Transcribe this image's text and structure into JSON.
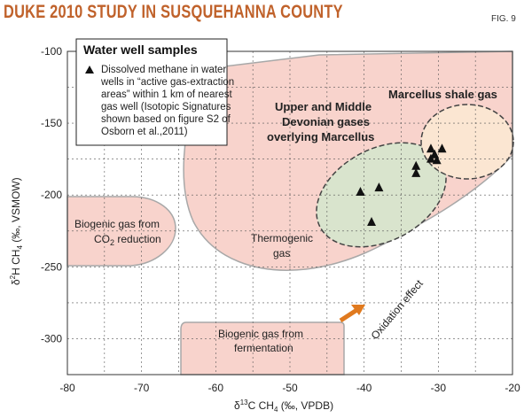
{
  "header": {
    "title": "DUKE 2010 STUDY IN SUSQUEHANNA COUNTY",
    "fig_number": "FIG. 9"
  },
  "colors": {
    "title": "#c0622b",
    "region_fill": "#f8d3cc",
    "region_stroke": "#a8a8a8",
    "devonian_fill": "#d9e4cd",
    "marcellus_fill": "#fbe6d2",
    "arrow": "#e07a1f"
  },
  "chart_data": {
    "type": "scatter",
    "xlabel": "δ13C CH4 (‰, VPDB)",
    "ylabel": "δ2H CH4 (‰, VSMOW)",
    "xlim": [
      -80,
      -20
    ],
    "ylim": [
      -325,
      -100
    ],
    "x_ticks": [
      -80,
      -70,
      -60,
      -50,
      -40,
      -30,
      -20
    ],
    "y_ticks": [
      -100,
      -150,
      -200,
      -250,
      -300
    ],
    "x_tick_labels": [
      "-80",
      "-70",
      "-60",
      "-50",
      "-40",
      "-30",
      "-20"
    ],
    "y_tick_labels": [
      "-100",
      "-150",
      "-200",
      "-250",
      "-300"
    ],
    "grid": true,
    "series": [
      {
        "name": "Dissolved methane in water wells",
        "marker": "triangle",
        "points": [
          {
            "x": -40.5,
            "y": -198
          },
          {
            "x": -39,
            "y": -219
          },
          {
            "x": -38,
            "y": -195
          },
          {
            "x": -33,
            "y": -180
          },
          {
            "x": -33,
            "y": -185
          },
          {
            "x": -31,
            "y": -168
          },
          {
            "x": -31,
            "y": -175
          },
          {
            "x": -30.5,
            "y": -172
          },
          {
            "x": -30.2,
            "y": -176
          },
          {
            "x": -29.5,
            "y": -168
          }
        ]
      }
    ],
    "legend": {
      "title": "Water well samples",
      "entry": "Dissolved methane in water wells in “active gas-extraction areas” within 1 km of nearest gas well (Isotopic Signatures shown based on figure S2 of Osborn et al.,2011)",
      "entry_lines": [
        "Dissolved methane in water",
        "wells in “active gas-extraction",
        "areas” within 1 km of nearest",
        "gas well (Isotopic Signatures",
        "shown based on figure S2 of",
        "Osborn et al.,2011)"
      ],
      "placement": "top-left"
    },
    "annotations": {
      "marcellus": "Marcellus shale gas",
      "devonian_lines": [
        "Upper and Middle",
        "Devonian gases",
        "overlying Marcellus"
      ],
      "thermogenic_lines": [
        "Thermogenic",
        "gas"
      ],
      "biogenic_co2_lines": [
        "Biogenic gas from",
        "CO2 reduction"
      ],
      "biogenic_ferm_lines": [
        "Biogenic gas from",
        "fermentation"
      ],
      "oxidation": "Oxidation effect"
    }
  }
}
